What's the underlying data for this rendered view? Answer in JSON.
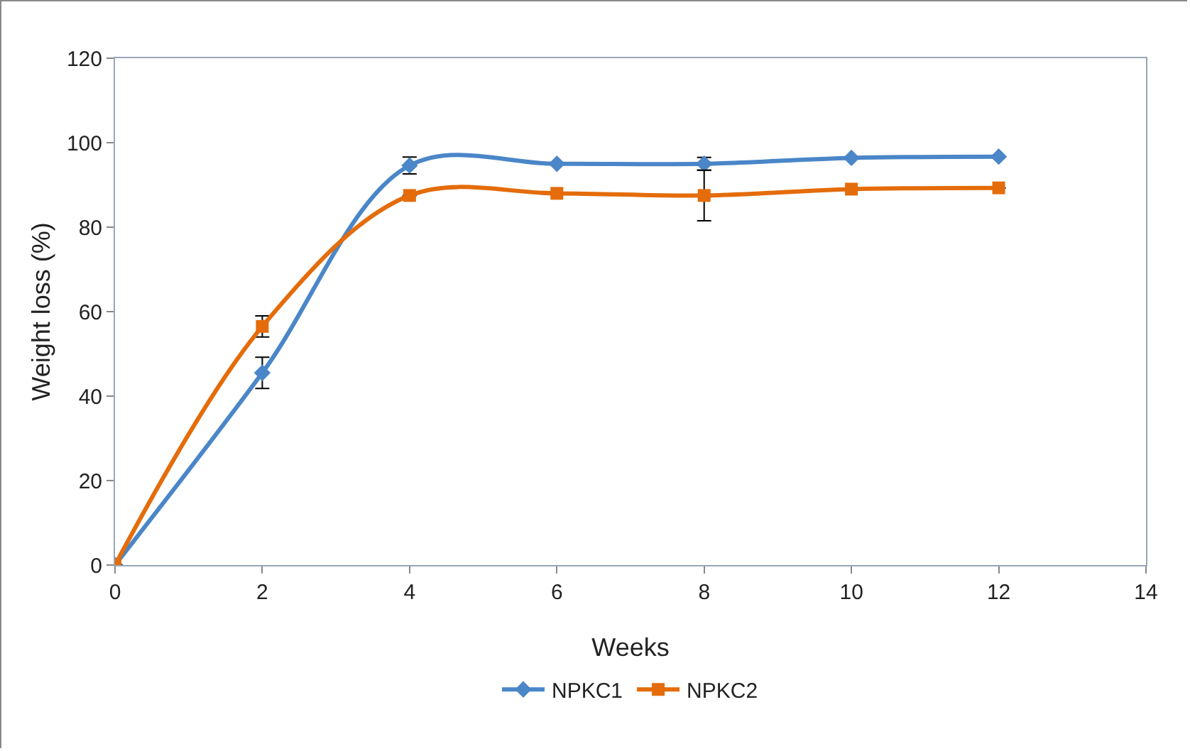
{
  "chart_data": {
    "type": "line",
    "xlabel": "Weeks",
    "ylabel": "Weight loss (%)",
    "x": [
      0,
      2,
      4,
      6,
      8,
      10,
      12
    ],
    "series": [
      {
        "name": "NPKC1",
        "color": "#4a86c8",
        "marker": "diamond",
        "values": [
          0,
          45.5,
          94.6,
          95,
          95,
          96.4,
          96.7
        ],
        "errors": [
          null,
          3.7,
          2,
          null,
          1.5,
          null,
          null
        ]
      },
      {
        "name": "NPKC2",
        "color": "#e46c0a",
        "marker": "square",
        "values": [
          0,
          56.5,
          87.5,
          88,
          87.5,
          89,
          89.3
        ],
        "errors": [
          null,
          2.5,
          null,
          null,
          6,
          null,
          null
        ]
      }
    ],
    "xlim": [
      0,
      14
    ],
    "xticks": [
      0,
      2,
      4,
      6,
      8,
      10,
      12,
      14
    ],
    "ylim": [
      0,
      120
    ],
    "yticks": [
      0,
      20,
      40,
      60,
      80,
      100,
      120
    ],
    "grid": false,
    "legend": "bottom"
  }
}
